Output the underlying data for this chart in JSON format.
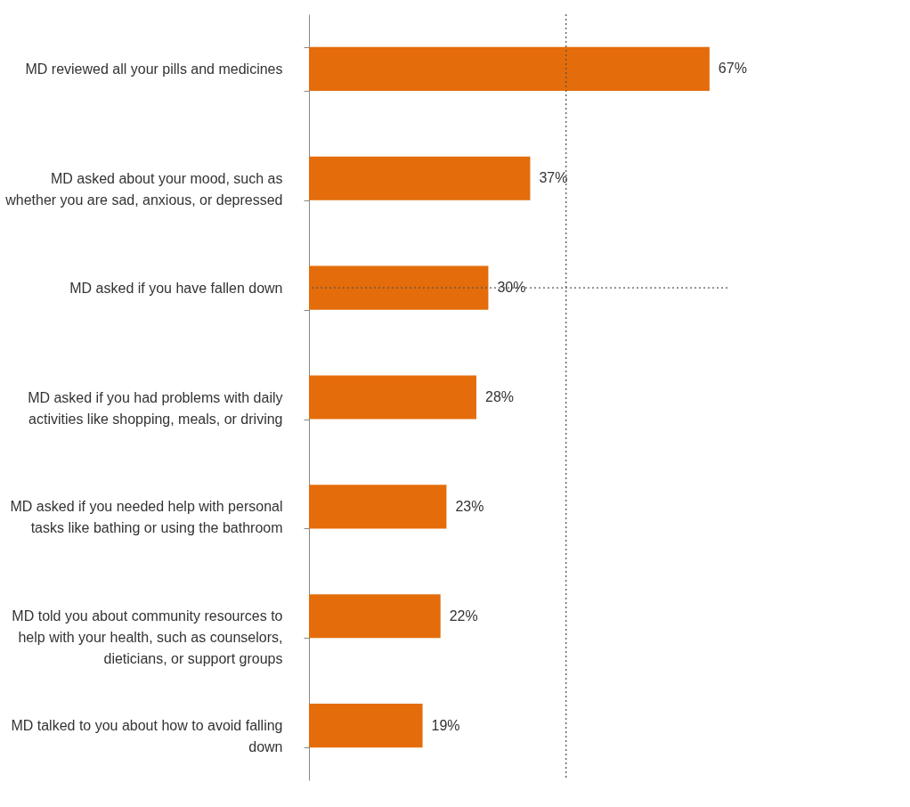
{
  "chart_data": {
    "type": "bar",
    "orientation": "horizontal",
    "categories": [
      "MD reviewed all your pills and medicines",
      "MD asked about your mood, such as\nwhether you are sad, anxious, or depressed",
      "MD asked if you have fallen down",
      "MD asked if you had problems with daily\nactivities like shopping, meals, or driving",
      "MD asked if you needed help with personal\ntasks like bathing or using the bathroom",
      "MD told you about community resources to\nhelp with your health, such as counselors,\ndieticians, or support groups",
      "MD talked to you about how to avoid falling\ndown"
    ],
    "series": [
      {
        "color": "#e46c0a",
        "values": [
          67,
          37,
          30,
          28,
          23,
          22,
          19
        ],
        "value_labels": [
          "67%",
          "37%",
          "30%",
          "28%",
          "23%",
          "22%",
          "19%"
        ]
      }
    ],
    "tick_labels": "y",
    "grid": false,
    "ref_lines": [
      {
        "axis": "x",
        "value": 43,
        "color": "#555555",
        "line_style": "dotted"
      },
      {
        "axis": "y",
        "value": "MD asked if you have fallen down",
        "color": "#555555",
        "line_style": "dotted"
      }
    ]
  }
}
